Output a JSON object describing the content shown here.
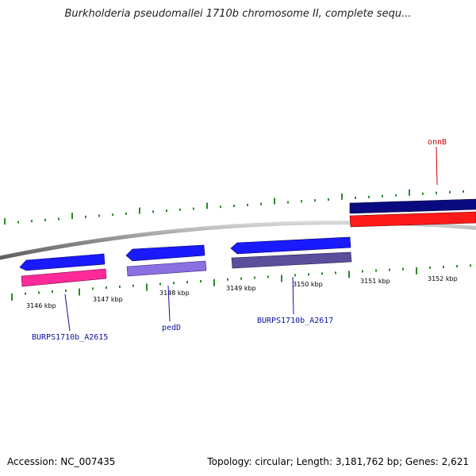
{
  "title": "Burkholderia pseudomallei 1710b chromosome II, complete sequ...",
  "footer": {
    "accession": "Accession: NC_007435",
    "summary": "Topology: circular; Length: 3,181,762 bp; Genes: 2,621"
  },
  "ruler": {
    "labels": [
      "3146 kbp",
      "3147 kbp",
      "3148 kbp",
      "3149 kbp",
      "3150 kbp",
      "3151 kbp",
      "3152 kbp"
    ],
    "tick_color": "#2a8a2a"
  },
  "genes": [
    {
      "name": "BURPS1710b_A2615",
      "label_color": "#1010a0",
      "cds_color": "#ff2a9a",
      "gene_color": "#1a1aff"
    },
    {
      "name": "pedD",
      "label_color": "#1010a0",
      "cds_color": "#8a70e0",
      "gene_color": "#1a1aff"
    },
    {
      "name": "BURPS1710b_A2617",
      "label_color": "#1010a0",
      "cds_color": "#5a4f9a",
      "gene_color": "#1a1aff"
    },
    {
      "name": "onnB",
      "label_color": "#cc0000",
      "cds_color": "#ff1a1a",
      "gene_color": "#0a0a80"
    }
  ]
}
